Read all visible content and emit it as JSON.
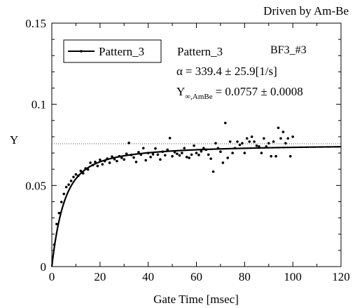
{
  "chart_data": {
    "type": "scatter",
    "title": "Driven by Am-Be",
    "xlabel": "Gate Time [msec]",
    "ylabel": "Y",
    "xlim": [
      0,
      120
    ],
    "ylim": [
      0,
      0.15
    ],
    "x_ticks": [
      0,
      20,
      40,
      60,
      80,
      100,
      120
    ],
    "y_ticks": [
      0,
      0.05,
      0.1,
      0.15
    ],
    "x_tick_labels": [
      "0",
      "20",
      "40",
      "60",
      "80",
      "100",
      "120"
    ],
    "y_tick_labels": [
      "0",
      "0.05",
      "0.1",
      "0.15"
    ],
    "legend": {
      "position": "top-left",
      "entries": [
        "Pattern_3"
      ]
    },
    "asymptote": {
      "y": 0.0757,
      "style": "dotted"
    },
    "annotations": {
      "detector": "BF3_#3",
      "pattern": "Pattern_3",
      "alpha_symbol": "α",
      "alpha_text": "= 339.4 ± 25.9[1/s]",
      "yinf_symbol": "Y",
      "yinf_subscript": "∞,AmBe",
      "yinf_text": "= 0.0757 ± 0.0008"
    },
    "fit_curve": {
      "name": "Pattern_3",
      "model": "Y = Yinf * (1 - (1 - exp(-alpha*T))/(alpha*T))",
      "Yinf": 0.0757,
      "alpha_per_s": 339.4
    },
    "series": [
      {
        "name": "Pattern_3",
        "x": [
          1,
          2,
          3,
          4,
          5,
          6,
          7,
          8,
          9,
          10,
          11,
          12,
          13,
          14,
          15,
          16,
          17,
          18,
          19,
          20,
          21,
          22,
          23,
          24,
          25,
          26,
          27,
          28,
          29,
          30,
          31,
          32,
          33,
          34,
          35,
          36,
          37,
          38,
          39,
          40,
          41,
          42,
          43,
          44,
          45,
          46,
          47,
          48,
          49,
          50,
          51,
          52,
          53,
          54,
          55,
          56,
          57,
          58,
          59,
          60,
          61,
          62,
          63,
          64,
          65,
          66,
          67,
          68,
          69,
          70,
          71,
          72,
          73,
          74,
          75,
          76,
          77,
          78,
          79,
          80,
          81,
          82,
          83,
          84,
          85,
          86,
          87,
          88,
          89,
          90,
          91,
          92,
          93,
          94,
          95,
          96,
          97,
          98,
          99,
          100
        ],
        "y": [
          0.0135,
          0.0262,
          0.033,
          0.0398,
          0.0448,
          0.049,
          0.0505,
          0.0528,
          0.0552,
          0.0568,
          0.056,
          0.059,
          0.0575,
          0.0605,
          0.0598,
          0.064,
          0.0625,
          0.0645,
          0.062,
          0.0658,
          0.063,
          0.065,
          0.0665,
          0.064,
          0.0678,
          0.0662,
          0.065,
          0.068,
          0.067,
          0.066,
          0.0695,
          0.0762,
          0.0688,
          0.0672,
          0.0645,
          0.0705,
          0.069,
          0.073,
          0.0655,
          0.07,
          0.0675,
          0.0692,
          0.0728,
          0.069,
          0.066,
          0.0708,
          0.0686,
          0.072,
          0.0792,
          0.068,
          0.0705,
          0.0695,
          0.0685,
          0.07,
          0.073,
          0.0675,
          0.067,
          0.069,
          0.0745,
          0.07,
          0.0688,
          0.071,
          0.073,
          0.072,
          0.069,
          0.0665,
          0.0585,
          0.076,
          0.073,
          0.0708,
          0.064,
          0.0885,
          0.067,
          0.077,
          0.07,
          0.073,
          0.077,
          0.075,
          0.076,
          0.07,
          0.079,
          0.077,
          0.08,
          0.077,
          0.0745,
          0.074,
          0.07,
          0.079,
          0.074,
          0.076,
          0.068,
          0.077,
          0.068,
          0.0855,
          0.079,
          0.083,
          0.076,
          0.079,
          0.068,
          0.08
        ]
      }
    ]
  }
}
